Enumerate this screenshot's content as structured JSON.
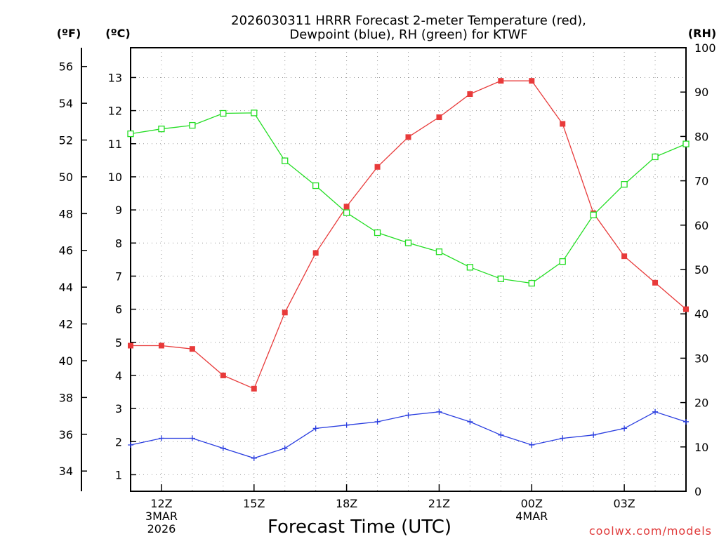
{
  "chart_data": {
    "type": "line",
    "title_lines": [
      "2026030311 HRRR Forecast 2-meter Temperature (red),",
      "Dewpoint (blue), RH (green) for KTWF"
    ],
    "xlabel": "Forecast Time (UTC)",
    "credit": "coolwx.com/models",
    "x_hours": [
      0,
      1,
      2,
      3,
      4,
      5,
      6,
      7,
      8,
      9,
      10,
      11,
      12,
      13,
      14,
      15,
      16,
      17,
      18
    ],
    "x_ticks": [
      {
        "hour": 1,
        "lines": [
          "12Z",
          "3MAR",
          "2026"
        ]
      },
      {
        "hour": 4,
        "lines": [
          "15Z"
        ]
      },
      {
        "hour": 7,
        "lines": [
          "18Z"
        ]
      },
      {
        "hour": 10,
        "lines": [
          "21Z"
        ]
      },
      {
        "hour": 13,
        "lines": [
          "00Z",
          "4MAR"
        ]
      },
      {
        "hour": 16,
        "lines": [
          "03Z"
        ]
      }
    ],
    "xlim": [
      0,
      18
    ],
    "left_axis_c": {
      "unit": "(ºC)",
      "ticks": [
        1,
        2,
        3,
        4,
        5,
        6,
        7,
        8,
        9,
        10,
        11,
        12,
        13
      ],
      "ylim": [
        0.5,
        13.9
      ]
    },
    "left_axis_f": {
      "unit": "(ºF)",
      "ticks": [
        34,
        36,
        38,
        40,
        42,
        44,
        46,
        48,
        50,
        52,
        54,
        56
      ]
    },
    "right_axis": {
      "unit": "(RH)",
      "ticks": [
        0,
        10,
        20,
        30,
        40,
        50,
        60,
        70,
        80,
        90,
        100
      ],
      "ylim": [
        0,
        100
      ]
    },
    "series": [
      {
        "name": "Temperature",
        "axis": "C",
        "color": "#e83a3a",
        "marker": "filled-square",
        "values": [
          4.9,
          4.9,
          4.8,
          4.0,
          3.6,
          5.9,
          7.7,
          9.1,
          10.3,
          11.2,
          11.8,
          12.5,
          12.9,
          12.9,
          11.6,
          8.9,
          7.6,
          6.8,
          6.0
        ]
      },
      {
        "name": "Dewpoint",
        "axis": "C",
        "color": "#2a3ee0",
        "marker": "plus",
        "values": [
          1.9,
          2.1,
          2.1,
          1.8,
          1.5,
          1.8,
          2.4,
          2.5,
          2.6,
          2.8,
          2.9,
          2.6,
          2.2,
          1.9,
          2.1,
          2.2,
          2.4,
          2.9,
          2.6
        ]
      },
      {
        "name": "RH",
        "axis": "RH",
        "color": "#22dd22",
        "marker": "open-square",
        "values": [
          80.6,
          81.7,
          82.5,
          85.2,
          85.3,
          74.5,
          68.9,
          62.8,
          58.3,
          56.0,
          54.0,
          50.5,
          47.9,
          46.9,
          51.8,
          62.3,
          69.2,
          75.4,
          78.3
        ]
      }
    ]
  }
}
